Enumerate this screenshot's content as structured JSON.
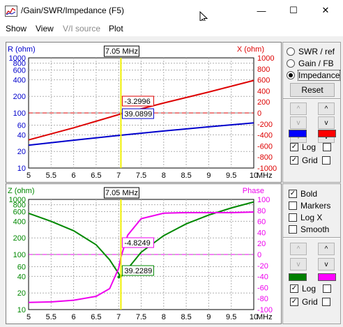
{
  "window": {
    "title": "/Gain/SWR/Impedance (F5)",
    "minimize": "—",
    "maximize": "☐",
    "close": "✕"
  },
  "menu": [
    {
      "label": "Show",
      "enabled": true
    },
    {
      "label": "View",
      "enabled": true
    },
    {
      "label": "V/I source",
      "enabled": false
    },
    {
      "label": "Plot",
      "enabled": true
    }
  ],
  "top_panel": {
    "options": [
      {
        "label": "SWR / ref",
        "selected": false
      },
      {
        "label": "Gain / FB",
        "selected": false
      },
      {
        "label": "Impedance",
        "selected": true
      }
    ],
    "reset_label": "Reset",
    "up_label": "^",
    "down_label": "v",
    "color_left": "#0000ff",
    "color_right": "#ff0000",
    "log_label": "Log",
    "grid_label": "Grid"
  },
  "bottom_panel": {
    "bold_label": "Bold",
    "markers_label": "Markers",
    "logx_label": "Log X",
    "smooth_label": "Smooth",
    "up_label": "^",
    "down_label": "v",
    "color_left": "#008000",
    "color_right": "#ff00ff",
    "log_label": "Log",
    "grid_label": "Grid"
  },
  "chart_data": [
    {
      "type": "line",
      "cursor": "7.05 MHz",
      "cursor_x": 7.05,
      "xlabel": "MHz",
      "x_ticks": [
        "5",
        "5.5",
        "6",
        "6.5",
        "7",
        "7.5",
        "8",
        "8.5",
        "9",
        "9.5",
        "10"
      ],
      "xlim": [
        5,
        10
      ],
      "left_axis_label": "R (ohm)",
      "left_ticks": [
        "1000",
        "800",
        "600",
        "400",
        "200",
        "100",
        "60",
        "40",
        "20",
        "10"
      ],
      "right_axis_label": "X (ohm)",
      "right_ticks": [
        "1000",
        "800",
        "600",
        "400",
        "200",
        "0",
        "-200",
        "-400",
        "-600",
        "-800",
        "-1000"
      ],
      "series": [
        {
          "axis": "left",
          "color": "#0000cc",
          "x": [
            5,
            6,
            7,
            8,
            9,
            10
          ],
          "y": [
            26,
            32,
            39,
            47,
            56,
            66
          ]
        },
        {
          "axis": "right",
          "color": "#dd0000",
          "x": [
            5,
            6,
            7,
            8,
            9,
            10
          ],
          "y": [
            -490,
            -270,
            -30,
            180,
            380,
            590
          ]
        }
      ],
      "reference": {
        "axis": "right",
        "value": 0,
        "color": "#dd0000"
      },
      "readouts": [
        {
          "text": "-3.2996",
          "color": "#dd0000"
        },
        {
          "text": "39.0899",
          "color": "#0000cc"
        }
      ]
    },
    {
      "type": "line",
      "cursor": "7.05 MHz",
      "cursor_x": 7.05,
      "xlabel": "MHz",
      "x_ticks": [
        "5",
        "5.5",
        "6",
        "6.5",
        "7",
        "7.5",
        "8",
        "8.5",
        "9",
        "9.5",
        "10"
      ],
      "xlim": [
        5,
        10
      ],
      "left_axis_label": "Z (ohm)",
      "left_ticks": [
        "1000",
        "800",
        "600",
        "400",
        "200",
        "100",
        "60",
        "40",
        "20",
        "10"
      ],
      "right_axis_label": "Phase",
      "right_ticks": [
        "100",
        "80",
        "60",
        "40",
        "20",
        "0",
        "-20",
        "-40",
        "-60",
        "-80",
        "-100"
      ],
      "series": [
        {
          "axis": "left",
          "color": "#008800",
          "x": [
            5,
            5.5,
            6,
            6.5,
            6.8,
            7,
            7.05,
            7.2,
            7.5,
            8,
            8.5,
            9,
            9.5,
            10
          ],
          "y": [
            560,
            400,
            270,
            150,
            80,
            45,
            39,
            55,
            110,
            220,
            360,
            520,
            700,
            900
          ]
        },
        {
          "axis": "right",
          "color": "#ee00ee",
          "x": [
            5,
            5.5,
            6,
            6.5,
            6.8,
            7,
            7.05,
            7.2,
            7.5,
            8,
            8.5,
            9,
            9.5,
            10
          ],
          "y": [
            -87,
            -86,
            -83,
            -76,
            -62,
            -25,
            -4.8,
            35,
            65,
            75,
            76,
            76,
            76,
            77
          ]
        }
      ],
      "reference": {
        "axis": "right",
        "value": 0,
        "color": "#ee00ee"
      },
      "readouts": [
        {
          "text": "-4.8249",
          "color": "#ee00ee"
        },
        {
          "text": "39.2289",
          "color": "#008800"
        }
      ]
    }
  ]
}
